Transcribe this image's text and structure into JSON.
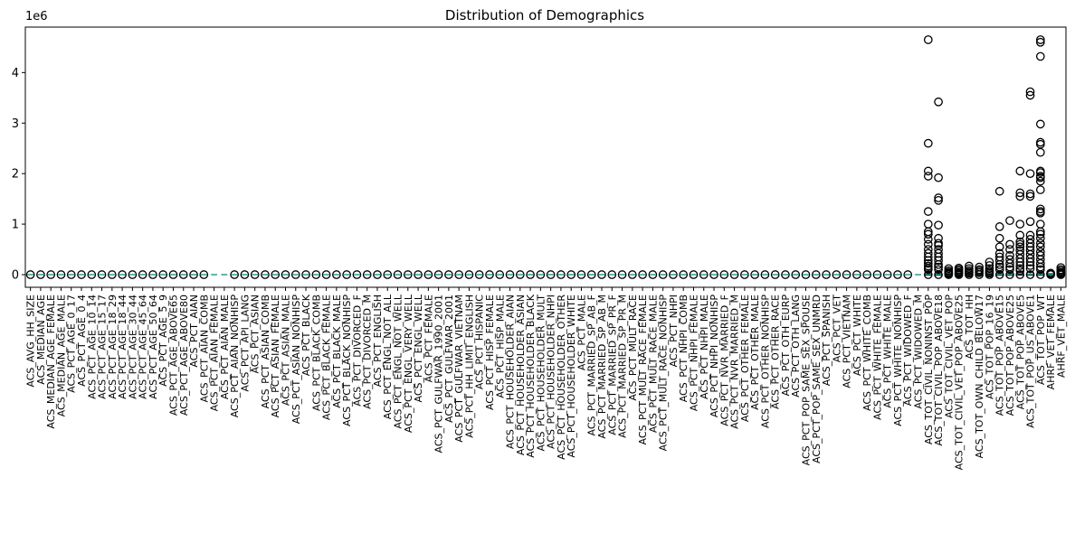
{
  "chart_data": {
    "type": "box",
    "title": "Distribution of Demographics",
    "xlabel": "",
    "ylabel": "",
    "y_multiplier_label": "1e6",
    "ylim": [
      -0.25,
      4.9
    ],
    "yticks": [
      0,
      1,
      2,
      3,
      4
    ],
    "ytick_labels": [
      "0",
      "1",
      "2",
      "3",
      "4"
    ],
    "grid": false,
    "colors": {
      "box": "#000000",
      "median": "#2a9d8f",
      "flier": "#000000"
    },
    "categories": [
      "ACS_AVG_HH_SIZE",
      "ACS_MEDIAN_AGE",
      "ACS_MEDIAN_AGE_FEMALE",
      "ACS_MEDIAN_AGE_MALE",
      "ACS_PCT_AGE_0_17",
      "ACS_PCT_AGE_0_4",
      "ACS_PCT_AGE_10_14",
      "ACS_PCT_AGE_15_17",
      "ACS_PCT_AGE_18_29",
      "ACS_PCT_AGE_18_44",
      "ACS_PCT_AGE_30_44",
      "ACS_PCT_AGE_45_64",
      "ACS_PCT_AGE_50_64",
      "ACS_PCT_AGE_5_9",
      "ACS_PCT_AGE_ABOVE65",
      "ACS_PCT_AGE_ABOVE80",
      "ACS_PCT_AIAN",
      "ACS_PCT_AIAN_COMB",
      "ACS_PCT_AIAN_FEMALE",
      "ACS_PCT_AIAN_MALE",
      "ACS_PCT_AIAN_NONHISP",
      "ACS_PCT_API_LANG",
      "ACS_PCT_ASIAN",
      "ACS_PCT_ASIAN_COMB",
      "ACS_PCT_ASIAN_FEMALE",
      "ACS_PCT_ASIAN_MALE",
      "ACS_PCT_ASIAN_NONHISP",
      "ACS_PCT_BLACK",
      "ACS_PCT_BLACK_COMB",
      "ACS_PCT_BLACK_FEMALE",
      "ACS_PCT_BLACK_MALE",
      "ACS_PCT_BLACK_NONHISP",
      "ACS_PCT_DIVORCED_F",
      "ACS_PCT_DIVORCED_M",
      "ACS_PCT_ENGLISH",
      "ACS_PCT_ENGL_NOT_ALL",
      "ACS_PCT_ENGL_NOT_WELL",
      "ACS_PCT_ENGL_VERY_WELL",
      "ACS_PCT_ENGL_WELL",
      "ACS_PCT_FEMALE",
      "ACS_PCT_GULFWAR_1990_2001",
      "ACS_PCT_GULFWAR_2001",
      "ACS_PCT_GULFWAR_VIETNAM",
      "ACS_PCT_HH_LIMIT_ENGLISH",
      "ACS_PCT_HISPANIC",
      "ACS_PCT_HISP_FEMALE",
      "ACS_PCT_HISP_MALE",
      "ACS_PCT_HOUSEHOLDER_AIAN",
      "ACS_PCT_HOUSEHOLDER_ASIAN",
      "ACS_PCT_HOUSEHOLDER_BLACK",
      "ACS_PCT_HOUSEHOLDER_MULT",
      "ACS_PCT_HOUSEHOLDER_NHPI",
      "ACS_PCT_HOUSEHOLDER_OTHER",
      "ACS_PCT_HOUSEHOLDER_WHITE",
      "ACS_PCT_MALE",
      "ACS_PCT_MARRIED_SP_AB_F",
      "ACS_PCT_MARRIED_SP_AB_M",
      "ACS_PCT_MARRIED_SP_PR_F",
      "ACS_PCT_MARRIED_SP_PR_M",
      "ACS_PCT_MULT_RACE",
      "ACS_PCT_MULT_RACE_FEMALE",
      "ACS_PCT_MULT_RACE_MALE",
      "ACS_PCT_MULT_RACE_NONHISP",
      "ACS_PCT_NHPI",
      "ACS_PCT_NHPI_COMB",
      "ACS_PCT_NHPI_FEMALE",
      "ACS_PCT_NHPI_MALE",
      "ACS_PCT_NHPI_NONHISP",
      "ACS_PCT_NVR_MARRIED_F",
      "ACS_PCT_NVR_MARRIED_M",
      "ACS_PCT_OTHER_FEMALE",
      "ACS_PCT_OTHER_MALE",
      "ACS_PCT_OTHER_NONHISP",
      "ACS_PCT_OTHER_RACE",
      "ACS_PCT_OTH_EURP",
      "ACS_PCT_OTH_LANG",
      "ACS_PCT_POP_SAME_SEX_SPOUSE",
      "ACS_PCT_POP_SAME_SEX_UNMRD",
      "ACS_PCT_SPANISH",
      "ACS_PCT_VET",
      "ACS_PCT_VIETNAM",
      "ACS_PCT_WHITE",
      "ACS_PCT_WHITE_COMB",
      "ACS_PCT_WHITE_FEMALE",
      "ACS_PCT_WHITE_MALE",
      "ACS_PCT_WHITE_NONHISP",
      "ACS_PCT_WIDOWED_F",
      "ACS_PCT_WIDOWED_M",
      "ACS_TOT_CIVIL_NONINST_POP",
      "ACS_TOT_CIVIL_POP_ABOVE18",
      "ACS_TOT_CIVIL_VET_POP",
      "ACS_TOT_CIVIL_VET_POP_ABOVE25",
      "ACS_TOT_HH",
      "ACS_TOT_OWN_CHILD_BELOW17",
      "ACS_TOT_POP_16_19",
      "ACS_TOT_POP_ABOVE15",
      "ACS_TOT_POP_ABOVE25",
      "ACS_TOT_POP_ABOVE5",
      "ACS_TOT_POP_US_ABOVE1",
      "ACS_TOT_POP_WT",
      "AHRF_VET_FEMALE",
      "AHRF_VET_MALE"
    ],
    "large_boxes": [
      {
        "category": "ACS_TOT_CIVIL_NONINST_POP",
        "q1": 0.005,
        "median": 0.012,
        "q3": 0.03,
        "whisker_high": 0.07,
        "outliers": [
          4.65,
          2.6,
          2.05,
          1.95,
          1.25,
          1.0,
          0.85,
          0.8,
          0.7,
          0.6,
          0.5,
          0.42,
          0.35,
          0.28,
          0.22,
          0.17,
          0.13,
          0.1
        ]
      },
      {
        "category": "ACS_TOT_CIVIL_POP_ABOVE18",
        "q1": 0.004,
        "median": 0.01,
        "q3": 0.025,
        "whisker_high": 0.06,
        "outliers": [
          3.42,
          1.92,
          1.52,
          1.47,
          0.98,
          0.72,
          0.62,
          0.58,
          0.5,
          0.42,
          0.35,
          0.28,
          0.2,
          0.15,
          0.1
        ]
      },
      {
        "category": "ACS_TOT_CIVIL_VET_POP",
        "q1": 0.0005,
        "median": 0.001,
        "q3": 0.003,
        "whisker_high": 0.006,
        "outliers": [
          0.12,
          0.08,
          0.05,
          0.03,
          0.015
        ]
      },
      {
        "category": "ACS_TOT_CIVIL_VET_POP_ABOVE25",
        "q1": 0.0005,
        "median": 0.001,
        "q3": 0.003,
        "whisker_high": 0.006,
        "outliers": [
          0.13,
          0.1,
          0.07,
          0.04,
          0.02
        ]
      },
      {
        "category": "ACS_TOT_HH",
        "q1": 0.002,
        "median": 0.005,
        "q3": 0.012,
        "whisker_high": 0.03,
        "outliers": [
          0.17,
          0.12,
          0.08,
          0.05,
          0.03
        ]
      },
      {
        "category": "ACS_TOT_OWN_CHILD_BELOW17",
        "q1": 0.001,
        "median": 0.003,
        "q3": 0.008,
        "whisker_high": 0.02,
        "outliers": [
          0.15,
          0.1,
          0.07,
          0.04
        ]
      },
      {
        "category": "ACS_TOT_POP_16_19",
        "q1": 0.0003,
        "median": 0.0008,
        "q3": 0.002,
        "whisker_high": 0.005,
        "outliers": [
          0.25,
          0.18,
          0.12,
          0.08,
          0.05,
          0.03
        ]
      },
      {
        "category": "ACS_TOT_POP_ABOVE15",
        "q1": 0.004,
        "median": 0.01,
        "q3": 0.025,
        "whisker_high": 0.06,
        "outliers": [
          1.65,
          0.95,
          0.72,
          0.55,
          0.42,
          0.35,
          0.28,
          0.2,
          0.15,
          0.1
        ]
      },
      {
        "category": "ACS_TOT_POP_ABOVE25",
        "q1": 0.003,
        "median": 0.008,
        "q3": 0.02,
        "whisker_high": 0.05,
        "outliers": [
          1.07,
          0.6,
          0.5,
          0.38,
          0.3,
          0.22,
          0.15,
          0.1
        ]
      },
      {
        "category": "ACS_TOT_POP_ABOVE5",
        "q1": 0.005,
        "median": 0.012,
        "q3": 0.03,
        "whisker_high": 0.07,
        "outliers": [
          2.05,
          1.62,
          1.55,
          1.0,
          0.78,
          0.65,
          0.6,
          0.55,
          0.48,
          0.4,
          0.32,
          0.25,
          0.18,
          0.12,
          0.08
        ]
      },
      {
        "category": "ACS_TOT_POP_US_ABOVE1",
        "q1": 0.005,
        "median": 0.012,
        "q3": 0.03,
        "whisker_high": 0.07,
        "outliers": [
          3.62,
          3.55,
          2.0,
          1.6,
          1.55,
          1.05,
          0.78,
          0.7,
          0.62,
          0.55,
          0.48,
          0.4,
          0.32,
          0.25,
          0.18,
          0.12
        ]
      },
      {
        "category": "ACS_TOT_POP_WT",
        "q1": 0.005,
        "median": 0.012,
        "q3": 0.03,
        "whisker_high": 0.07,
        "outliers": [
          4.65,
          4.6,
          4.32,
          2.98,
          2.62,
          2.58,
          2.42,
          2.05,
          2.02,
          1.95,
          1.92,
          1.85,
          1.68,
          1.3,
          1.25,
          1.22,
          1.0,
          0.85,
          0.8,
          0.72,
          0.62,
          0.55,
          0.45,
          0.38,
          0.3,
          0.22,
          0.15,
          0.1
        ]
      },
      {
        "category": "AHRF_VET_FEMALE",
        "q1": 0.0001,
        "median": 0.0002,
        "q3": 0.0005,
        "whisker_high": 0.001,
        "outliers": [
          0.03,
          0.02,
          0.01
        ]
      },
      {
        "category": "AHRF_VET_MALE",
        "q1": 0.001,
        "median": 0.002,
        "q3": 0.005,
        "whisker_high": 0.012,
        "outliers": [
          0.14,
          0.1,
          0.07,
          0.04,
          0.02
        ]
      }
    ],
    "no_visible_box": [
      "ACS_PCT_AIAN_FEMALE",
      "ACS_PCT_AIAN_MALE",
      "ACS_PCT_WIDOWED_M"
    ]
  }
}
